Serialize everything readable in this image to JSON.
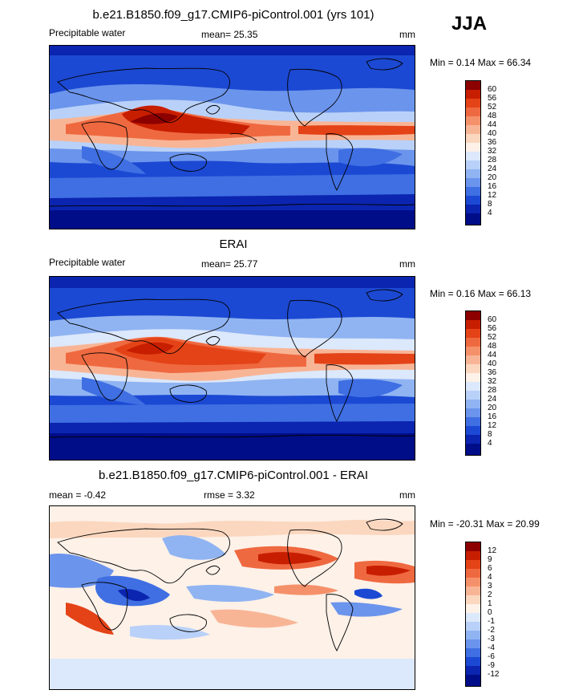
{
  "season": "JJA",
  "panels": [
    {
      "id": "model",
      "title": "b.e21.B1850.f09_g17.CMIP6-piControl.001 (yrs 101)",
      "left_label": "Precipitable water",
      "center_label": "mean=  25.35",
      "right_label": "mm",
      "minmax": "Min =   0.14 Max =  66.34",
      "levels": [
        "60",
        "56",
        "52",
        "48",
        "44",
        "40",
        "36",
        "32",
        "28",
        "24",
        "20",
        "16",
        "12",
        "8",
        "4"
      ],
      "colors": [
        "#8c0000",
        "#c81e00",
        "#e44317",
        "#ef6940",
        "#f5916a",
        "#f8b596",
        "#fbd7bf",
        "#fdf1e8",
        "#dce8fb",
        "#b9d1f8",
        "#90b4f2",
        "#6b94ec",
        "#3f6fe2",
        "#1c49d3",
        "#0b25b0",
        "#000d88"
      ]
    },
    {
      "id": "obs",
      "title": "ERAI",
      "left_label": "Precipitable water",
      "center_label": "mean=  25.77",
      "right_label": "mm",
      "minmax": "Min =   0.16 Max =  66.13",
      "levels": [
        "60",
        "56",
        "52",
        "48",
        "44",
        "40",
        "36",
        "32",
        "28",
        "24",
        "20",
        "16",
        "12",
        "8",
        "4"
      ],
      "colors": [
        "#8c0000",
        "#c81e00",
        "#e44317",
        "#ef6940",
        "#f5916a",
        "#f8b596",
        "#fbd7bf",
        "#fdf1e8",
        "#dce8fb",
        "#b9d1f8",
        "#90b4f2",
        "#6b94ec",
        "#3f6fe2",
        "#1c49d3",
        "#0b25b0",
        "#000d88"
      ]
    },
    {
      "id": "diff",
      "title": "b.e21.B1850.f09_g17.CMIP6-piControl.001 - ERAI",
      "left_label": "mean =  -0.42",
      "center_label": "rmse =   3.32",
      "right_label": "mm",
      "minmax": "Min = -20.31 Max =  20.99",
      "levels": [
        "12",
        "9",
        "6",
        "4",
        "3",
        "2",
        "1",
        "0",
        "-1",
        "-2",
        "-3",
        "-4",
        "-6",
        "-9",
        "-12"
      ],
      "colors": [
        "#8c0000",
        "#c81e00",
        "#e44317",
        "#ef6940",
        "#f5916a",
        "#f8b596",
        "#fbd7bf",
        "#fdf1e8",
        "#dce8fb",
        "#b9d1f8",
        "#90b4f2",
        "#6b94ec",
        "#3f6fe2",
        "#1c49d3",
        "#0b25b0",
        "#000d88"
      ]
    }
  ]
}
